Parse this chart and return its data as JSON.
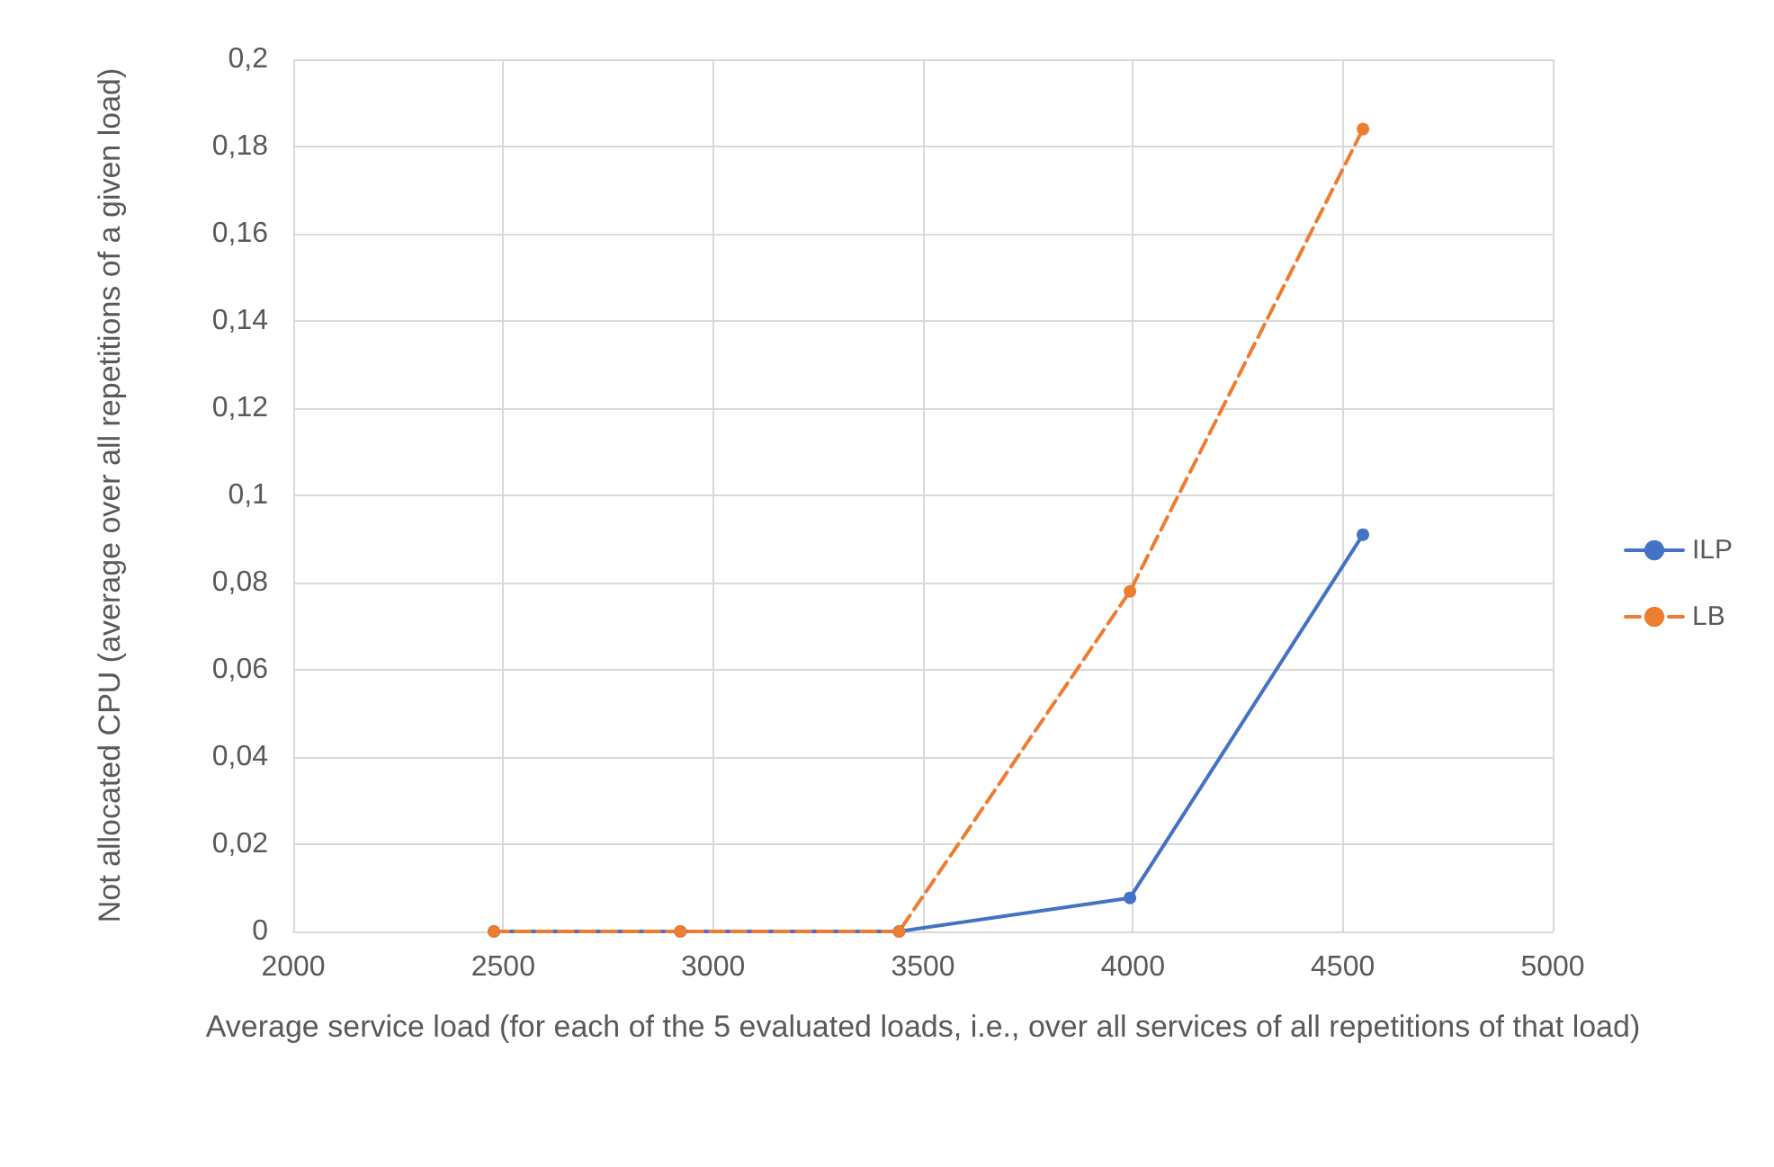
{
  "chart_data": {
    "type": "line",
    "xlabel": "Average service load (for each of the 5 evaluated loads, i.e., over all services of all repetitions of that load)",
    "ylabel": "Not allocated CPU (average over all repetitions of a given load)",
    "xlim": [
      2000,
      5000
    ],
    "xticks": [
      2000,
      2500,
      3000,
      3500,
      4000,
      4500,
      5000
    ],
    "ylim": [
      0,
      0.2
    ],
    "yticks": [
      0,
      {
        "value": 0.02,
        "label": "0,02"
      },
      {
        "value": 0.04,
        "label": "0,04"
      },
      {
        "value": 0.06,
        "label": "0,06"
      },
      {
        "value": 0.08,
        "label": "0,08"
      },
      {
        "value": 0.1,
        "label": "0,1"
      },
      {
        "value": 0.12,
        "label": "0,12"
      },
      {
        "value": 0.14,
        "label": "0,14"
      },
      {
        "value": 0.16,
        "label": "0,16"
      },
      {
        "value": 0.18,
        "label": "0,18"
      },
      {
        "value": 0.2,
        "label": "0,2"
      }
    ],
    "grid": true,
    "legend": "right",
    "marker": "circle",
    "x": [
      2478,
      2922,
      3443,
      3993,
      4548
    ],
    "series": [
      {
        "name": "ILP",
        "color": "#4472c4",
        "line_style": "solid",
        "values": [
          0,
          0,
          0,
          0.0077,
          0.091
        ]
      },
      {
        "name": "LB",
        "color": "#ed7d31",
        "line_style": "dashed",
        "values": [
          0,
          0,
          0,
          0.078,
          0.184
        ]
      }
    ]
  }
}
